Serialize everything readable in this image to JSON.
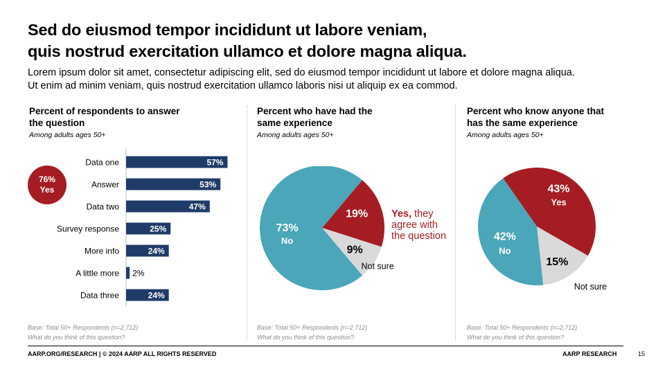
{
  "title_line1": "Sed do eiusmod tempor incididunt ut labore veniam,",
  "title_line2": "quis nostrud exercitation ullamco et dolore magna aliqua.",
  "subtitle_line1": "Lorem ipsum dolor sit amet, consectetur adipiscing elit, sed do eiusmod tempor incididunt ut labore et dolore magna aliqua.",
  "subtitle_line2": "Ut enim ad minim veniam, quis nostrud exercitation ullamco laboris nisi ut aliquip ex ea commod.",
  "colors": {
    "bar": "#1f3c68",
    "red": "#a51d23",
    "teal": "#4aa6b8",
    "grey": "#d9d9d9"
  },
  "panels": [
    {
      "title_line1": "Percent of respondents to answer",
      "title_line2": "the question",
      "sub": "Among adults ages 50+",
      "note_line1": "Base: Total 50+ Respondents (n=2,712)",
      "note_line2": "What do you think of this question?",
      "badge_value": "76%",
      "badge_label": "Yes"
    },
    {
      "title_line1": "Percent who have had the",
      "title_line2": "same experience",
      "sub": "Among adults ages 50+",
      "note_line1": "Base: Total 50+ Respondents (n=2,712)",
      "note_line2": "What do you think of this question?",
      "callout_bold": "Yes,",
      "callout_line1_rest": " they",
      "callout_line2": "agree with",
      "callout_line3": "the question"
    },
    {
      "title_line1": "Percent who know anyone that",
      "title_line2": "has the same experience",
      "sub": "Among adults ages 50+",
      "note_line1": "Base: Total 50+ Respondents (n=2,712)",
      "note_line2": "What do you think of this question?"
    }
  ],
  "chart_data": [
    {
      "type": "bar",
      "orientation": "horizontal",
      "categories": [
        "Data one",
        "Answer",
        "Data two",
        "Survey response",
        "More info",
        "A little more",
        "Data three"
      ],
      "values": [
        57,
        53,
        47,
        25,
        24,
        2,
        24
      ],
      "value_labels": [
        "57%",
        "53%",
        "47%",
        "25%",
        "24%",
        "2%",
        "24%"
      ],
      "xlim": [
        0,
        100
      ]
    },
    {
      "type": "pie",
      "slices": [
        {
          "name": "Yes",
          "label": "19%",
          "value": 19,
          "color": "#a51d23"
        },
        {
          "name": "Not sure",
          "label": "9%",
          "value": 9,
          "color": "#d9d9d9"
        },
        {
          "name": "No",
          "label": "73%",
          "value": 73,
          "color": "#4aa6b8"
        }
      ]
    },
    {
      "type": "pie",
      "slices": [
        {
          "name": "Yes",
          "label": "43%",
          "value": 43,
          "color": "#a51d23"
        },
        {
          "name": "Not sure",
          "label": "15%",
          "value": 15,
          "color": "#d9d9d9"
        },
        {
          "name": "No",
          "label": "42%",
          "value": 42,
          "color": "#4aa6b8"
        }
      ]
    }
  ],
  "footer_left": "AARP.ORG/RESEARCH | © 2024 AARP ALL RIGHTS RESERVED",
  "footer_right": "AARP RESEARCH",
  "page_number": "15"
}
